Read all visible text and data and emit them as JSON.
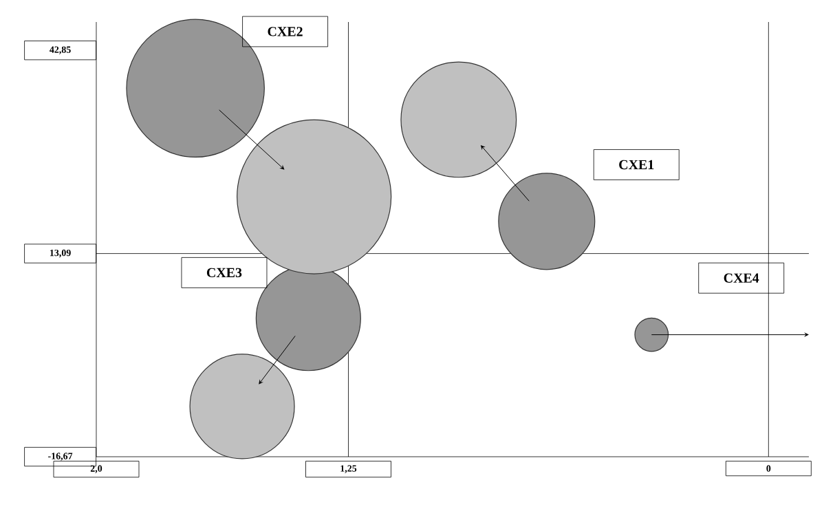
{
  "chart_data": {
    "type": "bubble",
    "xlim": [
      2,
      -0.12
    ],
    "ylim": [
      -16.67,
      47
    ],
    "xticks": [
      {
        "value": 2,
        "label": "2,0"
      },
      {
        "value": 1.25,
        "label": "1,25"
      },
      {
        "value": 0,
        "label": "0"
      }
    ],
    "yticks": [
      {
        "value": -16.67,
        "label": "-16,67"
      },
      {
        "value": 13.09,
        "label": "13,09"
      },
      {
        "value": 42.85,
        "label": "42,85"
      }
    ],
    "grid": false,
    "series": [
      {
        "color": "#969696",
        "x": [
          0.66,
          1.705,
          1.369,
          0.348
        ],
        "values": [
          17.8,
          37.3,
          3.6,
          1.2
        ],
        "sizes": [
          0.39,
          0.8,
          0.46,
          0.047
        ]
      },
      {
        "color": "#c0c0c0",
        "x": [
          0.922,
          1.352,
          1.566,
          null
        ],
        "values": [
          32.7,
          21.4,
          -9.3,
          null
        ],
        "sizes": [
          0.56,
          1,
          0.46,
          null
        ]
      }
    ],
    "ref_lines": [
      {
        "axis": "x",
        "value": 1.25
      },
      {
        "axis": "x",
        "value": 0
      },
      {
        "axis": "y",
        "value": 13.09
      }
    ],
    "annotations": [
      "CXE1",
      "CXE2",
      "CXE3",
      "CXE4"
    ]
  }
}
